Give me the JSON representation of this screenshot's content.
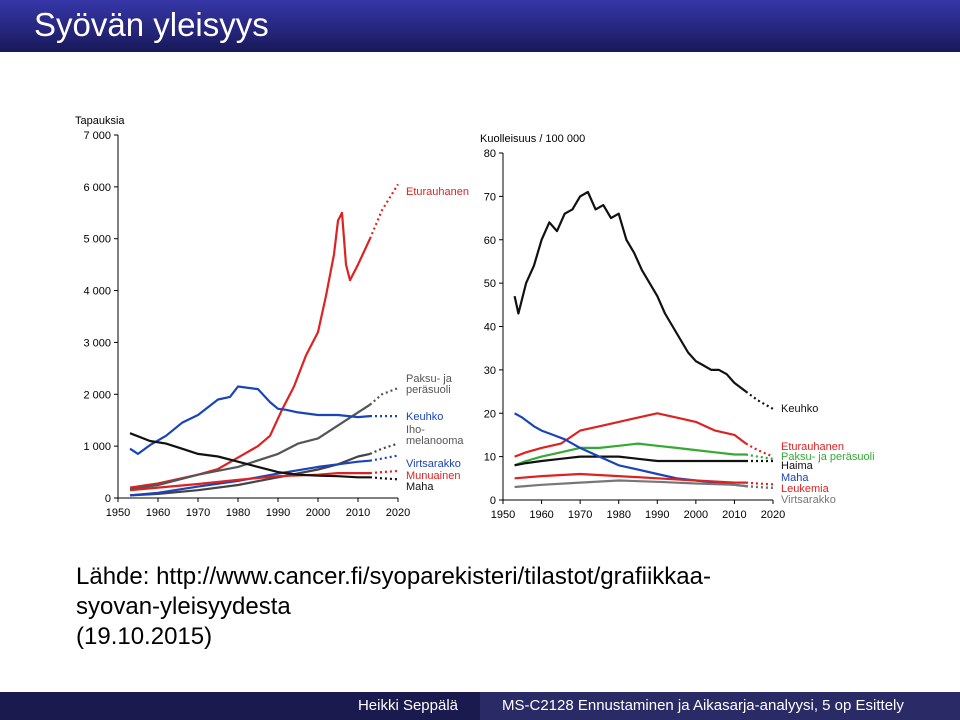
{
  "slide": {
    "title": "Syövän yleisyys",
    "source_line1": "Lähde: http://www.cancer.fi/syoparekisteri/tilastot/grafiikkaa-",
    "source_line2": "syovan-yleisyydesta",
    "source_line3": "(19.10.2015)",
    "footer_author": "Heikki Seppälä",
    "footer_course": "MS-C2128 Ennustaminen ja Aikasarja-analyysi, 5 op Esittely"
  },
  "chart_data": [
    {
      "type": "line",
      "ylabel": "Tapauksia",
      "x_ticks": [
        1950,
        1960,
        1970,
        1980,
        1990,
        2000,
        2010,
        2020
      ],
      "y_ticks": [
        "0",
        "1 000",
        "2 000",
        "3 000",
        "4 000",
        "5 000",
        "6 000",
        "7 000"
      ],
      "xlim": [
        1950,
        2020
      ],
      "ylim": [
        0,
        7000
      ],
      "dotted_projection_from": 2013,
      "series": [
        {
          "name": "Eturauhanen",
          "color": "#dd2222",
          "points": [
            [
              1953,
              200
            ],
            [
              1960,
              280
            ],
            [
              1970,
              450
            ],
            [
              1975,
              560
            ],
            [
              1980,
              780
            ],
            [
              1985,
              1000
            ],
            [
              1988,
              1200
            ],
            [
              1991,
              1700
            ],
            [
              1994,
              2150
            ],
            [
              1997,
              2750
            ],
            [
              2000,
              3200
            ],
            [
              2002,
              3900
            ],
            [
              2004,
              4700
            ],
            [
              2005,
              5350
            ],
            [
              2006,
              5500
            ],
            [
              2007,
              4500
            ],
            [
              2008,
              4200
            ],
            [
              2010,
              4500
            ],
            [
              2013,
              5000
            ],
            [
              2016,
              5550
            ],
            [
              2020,
              6050
            ]
          ]
        },
        {
          "name": "Paksu- ja peräsuoli",
          "color": "#555555",
          "points": [
            [
              1953,
              170
            ],
            [
              1960,
              250
            ],
            [
              1970,
              450
            ],
            [
              1980,
              600
            ],
            [
              1990,
              850
            ],
            [
              1995,
              1050
            ],
            [
              2000,
              1150
            ],
            [
              2005,
              1400
            ],
            [
              2010,
              1650
            ],
            [
              2013,
              1800
            ],
            [
              2016,
              2000
            ],
            [
              2020,
              2120
            ]
          ]
        },
        {
          "name": "Keuhko",
          "color": "#1a44b8",
          "points": [
            [
              1953,
              950
            ],
            [
              1955,
              850
            ],
            [
              1958,
              1020
            ],
            [
              1962,
              1200
            ],
            [
              1966,
              1450
            ],
            [
              1970,
              1600
            ],
            [
              1975,
              1900
            ],
            [
              1978,
              1950
            ],
            [
              1980,
              2150
            ],
            [
              1985,
              2100
            ],
            [
              1988,
              1850
            ],
            [
              1990,
              1720
            ],
            [
              1992,
              1700
            ],
            [
              1995,
              1650
            ],
            [
              2000,
              1600
            ],
            [
              2005,
              1600
            ],
            [
              2010,
              1560
            ],
            [
              2013,
              1580
            ],
            [
              2016,
              1580
            ],
            [
              2020,
              1580
            ]
          ]
        },
        {
          "name": "Ihomelanooma",
          "color": "#444444",
          "points": [
            [
              1953,
              50
            ],
            [
              1960,
              80
            ],
            [
              1970,
              150
            ],
            [
              1980,
              250
            ],
            [
              1990,
              400
            ],
            [
              2000,
              550
            ],
            [
              2005,
              650
            ],
            [
              2010,
              800
            ],
            [
              2013,
              850
            ],
            [
              2016,
              950
            ],
            [
              2020,
              1050
            ]
          ]
        },
        {
          "name": "Virtsarakko",
          "color": "#1a44b8",
          "points": [
            [
              1953,
              50
            ],
            [
              1960,
              100
            ],
            [
              1970,
              220
            ],
            [
              1980,
              330
            ],
            [
              1990,
              470
            ],
            [
              2000,
              600
            ],
            [
              2005,
              650
            ],
            [
              2010,
              700
            ],
            [
              2013,
              720
            ],
            [
              2016,
              760
            ],
            [
              2020,
              820
            ]
          ]
        },
        {
          "name": "Munuainen",
          "color": "#dd2222",
          "points": [
            [
              1953,
              150
            ],
            [
              1960,
              200
            ],
            [
              1970,
              270
            ],
            [
              1980,
              350
            ],
            [
              1990,
              420
            ],
            [
              2000,
              450
            ],
            [
              2005,
              480
            ],
            [
              2010,
              480
            ],
            [
              2013,
              480
            ],
            [
              2016,
              500
            ],
            [
              2020,
              520
            ]
          ]
        },
        {
          "name": "Maha",
          "color": "#111111",
          "points": [
            [
              1953,
              1250
            ],
            [
              1958,
              1100
            ],
            [
              1962,
              1050
            ],
            [
              1966,
              950
            ],
            [
              1970,
              850
            ],
            [
              1975,
              800
            ],
            [
              1980,
              700
            ],
            [
              1985,
              600
            ],
            [
              1990,
              500
            ],
            [
              1995,
              450
            ],
            [
              2000,
              430
            ],
            [
              2005,
              420
            ],
            [
              2010,
              400
            ],
            [
              2013,
              400
            ],
            [
              2016,
              380
            ],
            [
              2020,
              360
            ]
          ]
        }
      ]
    },
    {
      "type": "line",
      "ylabel": "Kuolleisuus / 100 000",
      "x_ticks": [
        1950,
        1960,
        1970,
        1980,
        1990,
        2000,
        2010,
        2020
      ],
      "y_ticks": [
        0,
        10,
        20,
        30,
        40,
        50,
        60,
        70,
        80
      ],
      "xlim": [
        1950,
        2020
      ],
      "ylim": [
        0,
        80
      ],
      "dotted_projection_from": 2013,
      "series": [
        {
          "name": "Keuhko",
          "color": "#111111",
          "points": [
            [
              1953,
              47
            ],
            [
              1954,
              43
            ],
            [
              1956,
              50
            ],
            [
              1958,
              54
            ],
            [
              1960,
              60
            ],
            [
              1962,
              64
            ],
            [
              1964,
              62
            ],
            [
              1966,
              66
            ],
            [
              1968,
              67
            ],
            [
              1970,
              70
            ],
            [
              1972,
              71
            ],
            [
              1974,
              67
            ],
            [
              1976,
              68
            ],
            [
              1978,
              65
            ],
            [
              1980,
              66
            ],
            [
              1982,
              60
            ],
            [
              1984,
              57
            ],
            [
              1986,
              53
            ],
            [
              1988,
              50
            ],
            [
              1990,
              47
            ],
            [
              1992,
              43
            ],
            [
              1994,
              40
            ],
            [
              1996,
              37
            ],
            [
              1998,
              34
            ],
            [
              2000,
              32
            ],
            [
              2002,
              31
            ],
            [
              2004,
              30
            ],
            [
              2006,
              30
            ],
            [
              2008,
              29
            ],
            [
              2010,
              27
            ],
            [
              2013,
              25
            ],
            [
              2016,
              23
            ],
            [
              2020,
              21
            ]
          ]
        },
        {
          "name": "Eturauhanen",
          "color": "#dd2222",
          "points": [
            [
              1953,
              10
            ],
            [
              1956,
              11
            ],
            [
              1960,
              12
            ],
            [
              1965,
              13
            ],
            [
              1970,
              16
            ],
            [
              1975,
              17
            ],
            [
              1980,
              18
            ],
            [
              1985,
              19
            ],
            [
              1990,
              20
            ],
            [
              1995,
              19
            ],
            [
              2000,
              18
            ],
            [
              2005,
              16
            ],
            [
              2010,
              15
            ],
            [
              2013,
              13
            ],
            [
              2016,
              11.5
            ],
            [
              2020,
              10
            ]
          ]
        },
        {
          "name": "Paksu- ja peräsuoli",
          "color": "#33aa33",
          "points": [
            [
              1953,
              8
            ],
            [
              1956,
              9
            ],
            [
              1960,
              10
            ],
            [
              1965,
              11
            ],
            [
              1970,
              12
            ],
            [
              1975,
              12
            ],
            [
              1980,
              12.5
            ],
            [
              1985,
              13
            ],
            [
              1990,
              12.5
            ],
            [
              1995,
              12
            ],
            [
              2000,
              11.5
            ],
            [
              2005,
              11
            ],
            [
              2010,
              10.5
            ],
            [
              2013,
              10.5
            ],
            [
              2016,
              10
            ],
            [
              2020,
              9.5
            ]
          ]
        },
        {
          "name": "Haima",
          "color": "#111111",
          "points": [
            [
              1953,
              8
            ],
            [
              1956,
              8.5
            ],
            [
              1960,
              9
            ],
            [
              1965,
              9.5
            ],
            [
              1970,
              10
            ],
            [
              1975,
              10
            ],
            [
              1980,
              10
            ],
            [
              1985,
              9.5
            ],
            [
              1990,
              9
            ],
            [
              1995,
              9
            ],
            [
              2000,
              9
            ],
            [
              2005,
              9
            ],
            [
              2010,
              9
            ],
            [
              2013,
              9
            ],
            [
              2016,
              9
            ],
            [
              2020,
              9
            ]
          ]
        },
        {
          "name": "Maha",
          "color": "#1a44b8",
          "points": [
            [
              1953,
              20
            ],
            [
              1955,
              19
            ],
            [
              1958,
              17
            ],
            [
              1960,
              16
            ],
            [
              1963,
              15
            ],
            [
              1966,
              14
            ],
            [
              1970,
              12
            ],
            [
              1975,
              10
            ],
            [
              1980,
              8
            ],
            [
              1985,
              7
            ],
            [
              1990,
              6
            ],
            [
              1995,
              5
            ],
            [
              2000,
              4.5
            ],
            [
              2005,
              4
            ],
            [
              2010,
              3.5
            ],
            [
              2013,
              3.2
            ],
            [
              2016,
              3
            ],
            [
              2020,
              2.8
            ]
          ]
        },
        {
          "name": "Leukemia",
          "color": "#dd2222",
          "points": [
            [
              1953,
              5
            ],
            [
              1960,
              5.5
            ],
            [
              1970,
              6
            ],
            [
              1980,
              5.5
            ],
            [
              1990,
              5
            ],
            [
              2000,
              4.5
            ],
            [
              2010,
              4
            ],
            [
              2013,
              4
            ],
            [
              2016,
              3.8
            ],
            [
              2020,
              3.6
            ]
          ]
        },
        {
          "name": "Virtsarakko",
          "color": "#777777",
          "points": [
            [
              1953,
              3
            ],
            [
              1960,
              3.5
            ],
            [
              1970,
              4
            ],
            [
              1980,
              4.5
            ],
            [
              1990,
              4.2
            ],
            [
              2000,
              3.8
            ],
            [
              2010,
              3.5
            ],
            [
              2013,
              3.2
            ],
            [
              2016,
              3
            ],
            [
              2020,
              2.8
            ]
          ]
        }
      ]
    }
  ]
}
